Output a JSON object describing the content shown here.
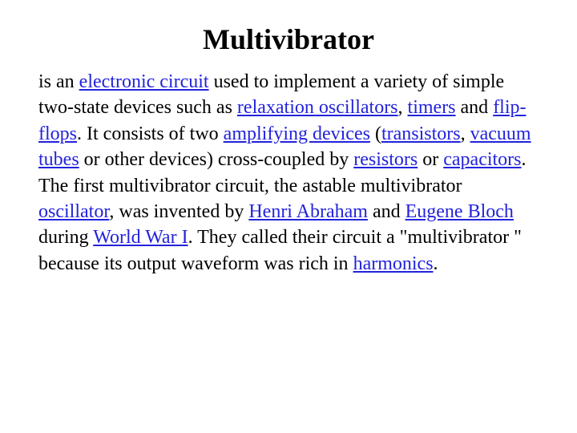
{
  "title": "Multivibrator",
  "text": {
    "t1": "is an ",
    "t2": " used to implement a variety of simple two-state devices such as ",
    "t3": ", ",
    "t4": " and ",
    "t5": ". It consists of two ",
    "t6": " (",
    "t7": ", ",
    "t8": " or other devices) cross-coupled by ",
    "t9": " or ",
    "t10": ". The first multivibrator circuit, the astable multivibrator ",
    "t11": ", was invented by ",
    "t12": " and ",
    "t13": " during ",
    "t14": ". They called their circuit a \"multivibrator \" because its output waveform was rich in ",
    "t15": "."
  },
  "links": {
    "electronic_circuit": "electronic circuit",
    "relaxation_oscillators": "relaxation oscillators",
    "timers": "timers",
    "flip_flops": "flip-flops",
    "amplifying_devices": "amplifying devices",
    "transistors": "transistors",
    "vacuum_tubes": "vacuum tubes",
    "resistors": "resistors",
    "capacitors": "capacitors",
    "oscillator": "oscillator",
    "henri_abraham": "Henri Abraham",
    "eugene_bloch": "Eugene Bloch",
    "wwi": "World War I",
    "harmonics": "harmonics"
  },
  "colors": {
    "link": "#2323dc",
    "text": "#000000",
    "background": "#ffffff"
  },
  "typography": {
    "title_fontsize": 36,
    "body_fontsize": 24,
    "font_family": "Times New Roman"
  }
}
